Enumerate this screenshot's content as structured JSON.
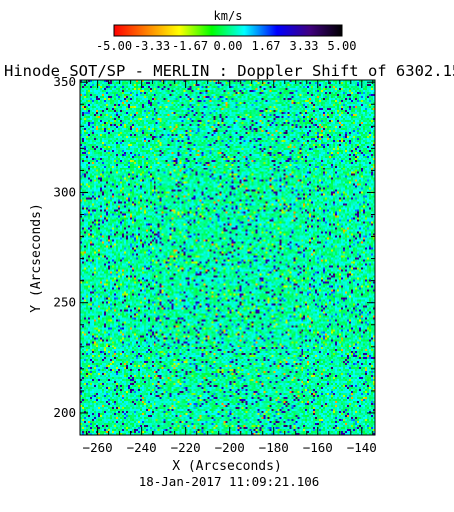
{
  "colorbar": {
    "unit": "km/s",
    "min": -5.0,
    "max": 5.0,
    "tick_labels": [
      "-5.00",
      "-3.33",
      "-1.67",
      "0.00",
      "1.67",
      "3.33",
      "5.00"
    ],
    "colors": [
      "#ff0000",
      "#ff8000",
      "#ffff00",
      "#00ff00",
      "#00ffff",
      "#0000ff",
      "#400080",
      "#000000"
    ]
  },
  "chart_data": {
    "type": "heatmap",
    "title": "Hinode SOT/SP - MERLIN : Doppler Shift of 6302.15",
    "xlabel": "X (Arcseconds)",
    "ylabel": "Y (Arcseconds)",
    "xlim": [
      -268,
      -134
    ],
    "ylim": [
      190,
      351
    ],
    "x_ticks": [
      -260,
      -240,
      -220,
      -200,
      -180,
      -160,
      -140
    ],
    "y_ticks": [
      200,
      250,
      300,
      350
    ],
    "value_unit": "km/s",
    "value_range": [
      -5.0,
      5.0
    ],
    "dominant_value_km_s": 0.2
  },
  "date": "18-Jan-2017 11:09:21.106"
}
